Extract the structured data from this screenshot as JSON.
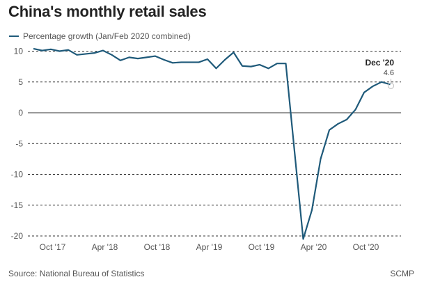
{
  "chart_data": {
    "type": "line",
    "title": "China's monthly retail sales",
    "legend": "Percentage growth (Jan/Feb 2020 combined)",
    "xlabel": "",
    "ylabel": "",
    "ylim": [
      -20,
      10
    ],
    "yticks": [
      10,
      5,
      0,
      -5,
      -10,
      -15,
      -20
    ],
    "xticks": [
      {
        "label": "Oct '17",
        "month": "2017-10"
      },
      {
        "label": "Apr '18",
        "month": "2018-04"
      },
      {
        "label": "Oct '18",
        "month": "2018-10"
      },
      {
        "label": "Apr '19",
        "month": "2019-04"
      },
      {
        "label": "Oct '19",
        "month": "2019-10"
      },
      {
        "label": "Apr '20",
        "month": "2020-04"
      },
      {
        "label": "Oct '20",
        "month": "2020-10"
      }
    ],
    "start_month": "2017-07",
    "series": [
      {
        "name": "Percentage growth (Jan/Feb 2020 combined)",
        "color": "#1f5a7a",
        "values": [
          10.4,
          10.1,
          10.3,
          10.0,
          10.2,
          9.4,
          null,
          9.7,
          10.1,
          9.4,
          8.5,
          9.0,
          8.8,
          9.0,
          9.2,
          8.6,
          8.1,
          8.2,
          null,
          8.2,
          8.7,
          7.2,
          8.6,
          9.8,
          7.6,
          7.5,
          7.8,
          7.2,
          8.0,
          8.0,
          null,
          -20.5,
          -15.8,
          -7.5,
          -2.8,
          -1.8,
          -1.1,
          0.5,
          3.3,
          4.3,
          5.0,
          4.6
        ]
      }
    ],
    "annotation": {
      "label": "Dec '20",
      "value": "4.6"
    },
    "grid": true,
    "legend_position": "top-left"
  },
  "footer": {
    "source": "Source: National Bureau of Statistics",
    "credit": "SCMP"
  }
}
